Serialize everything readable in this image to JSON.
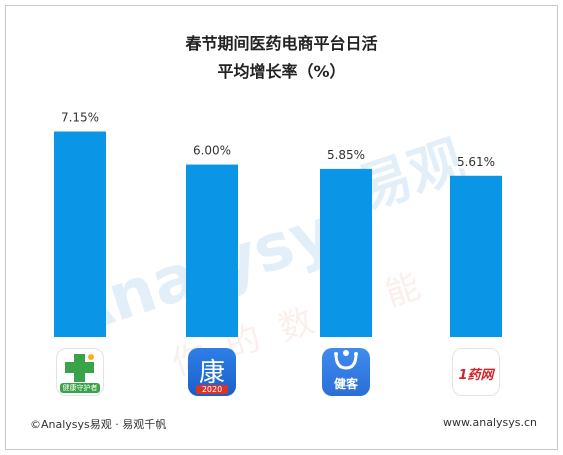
{
  "title_line1": "春节期间医药电商平台日活",
  "title_line2": "平均增长率（%）",
  "chart_data": {
    "type": "bar",
    "categories": [
      "健康守护者",
      "康 2020",
      "健客",
      "1药网"
    ],
    "values": [
      7.15,
      6.0,
      5.85,
      5.61
    ],
    "value_labels": [
      "7.15%",
      "6.00%",
      "5.85%",
      "5.61%"
    ],
    "ylim": [
      0,
      8
    ],
    "bar_color": "#0a95e6",
    "grid": false,
    "legend": "none"
  },
  "icons": [
    {
      "name": "jiankang-shouhuzhe-app-icon",
      "text": "健康守护者"
    },
    {
      "name": "kang-app-icon",
      "text": "康",
      "sub": "2020"
    },
    {
      "name": "jianke-app-icon",
      "text": "健客"
    },
    {
      "name": "yiyaowang-app-icon",
      "text": "1药网"
    }
  ],
  "watermark": {
    "brand": "Analysys",
    "brand_cn": "易观",
    "slogan": "你的数据能"
  },
  "footer": {
    "left": "©Analysys易观 · 易观千帆",
    "right": "www.analysys.cn"
  }
}
